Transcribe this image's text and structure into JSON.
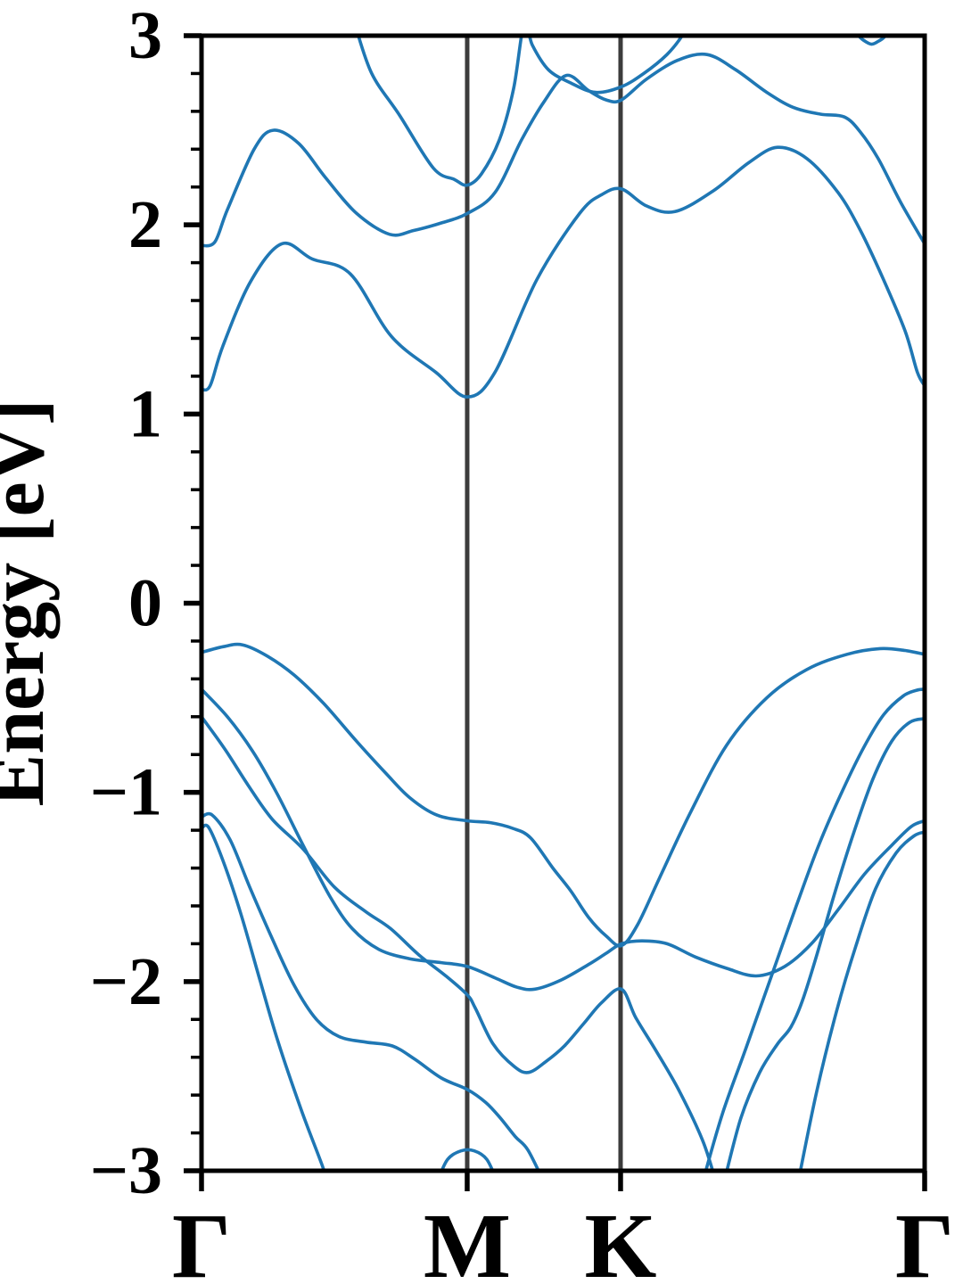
{
  "figure": {
    "kind": "band-structure-plot",
    "background": "#ffffff"
  },
  "chart_data": {
    "type": "line",
    "title": "",
    "xlabel": "",
    "ylabel": "Energy [eV]",
    "ylim": [
      -3,
      3
    ],
    "grid": "off",
    "legend": "none",
    "y_major_ticks": [
      3,
      2,
      1,
      0,
      -1,
      -2,
      -3
    ],
    "y_tick_labels": [
      "3",
      "2",
      "1",
      "0",
      "−1",
      "−2",
      "−3"
    ],
    "y_minor_step": 0.2,
    "x_axis": {
      "kpoint_labels": [
        "Γ",
        "M",
        "K",
        "Γ"
      ],
      "kpoint_fracs": [
        0,
        0.3674,
        0.5795,
        1
      ],
      "vertical_lines_at": [
        0.3674,
        0.5795
      ]
    },
    "style": {
      "band_color": "#1f77b4",
      "band_width": 3.6,
      "frame_color": "#000000",
      "frame_width": 5,
      "kline_color": "#3c3c3c",
      "kline_width": 5,
      "tick_color": "#000000",
      "y_tick_font_px": 76,
      "x_label_font_px": 104,
      "ylabel_font_px": 88
    },
    "series": [
      {
        "name": "conduction-band-1",
        "points": [
          [
            0,
            1.13
          ],
          [
            0.012,
            1.15
          ],
          [
            0.0296,
            1.36
          ],
          [
            0.0678,
            1.7
          ],
          [
            0.111,
            1.9
          ],
          [
            0.1529,
            1.82
          ],
          [
            0.2059,
            1.74
          ],
          [
            0.2626,
            1.41
          ],
          [
            0.3243,
            1.22
          ],
          [
            0.3674,
            1.09
          ],
          [
            0.4057,
            1.22
          ],
          [
            0.4636,
            1.71
          ],
          [
            0.5228,
            2.06
          ],
          [
            0.5536,
            2.16
          ],
          [
            0.5807,
            2.19
          ],
          [
            0.6153,
            2.1
          ],
          [
            0.6547,
            2.07
          ],
          [
            0.7078,
            2.18
          ],
          [
            0.7571,
            2.33
          ],
          [
            0.7966,
            2.41
          ],
          [
            0.8372,
            2.35
          ],
          [
            0.8804,
            2.17
          ],
          [
            0.9112,
            1.97
          ],
          [
            0.942,
            1.72
          ],
          [
            0.9729,
            1.44
          ],
          [
            0.99,
            1.22
          ],
          [
            1,
            1.15
          ]
        ]
      },
      {
        "name": "conduction-band-2",
        "points": [
          [
            0,
            1.89
          ],
          [
            0.0185,
            1.91
          ],
          [
            0.0358,
            2.08
          ],
          [
            0.0728,
            2.4
          ],
          [
            0.099,
            2.5
          ],
          [
            0.1344,
            2.43
          ],
          [
            0.1714,
            2.25
          ],
          [
            0.2145,
            2.06
          ],
          [
            0.2602,
            1.95
          ],
          [
            0.2934,
            1.97
          ],
          [
            0.3317,
            2.01
          ],
          [
            0.3674,
            2.06
          ],
          [
            0.4057,
            2.17
          ],
          [
            0.4427,
            2.45
          ],
          [
            0.4735,
            2.65
          ],
          [
            0.5043,
            2.79
          ],
          [
            0.5351,
            2.71
          ],
          [
            0.5598,
            2.66
          ],
          [
            0.5807,
            2.66
          ],
          [
            0.6153,
            2.77
          ],
          [
            0.6584,
            2.87
          ],
          [
            0.6991,
            2.9
          ],
          [
            0.7386,
            2.82
          ],
          [
            0.7818,
            2.7
          ],
          [
            0.8188,
            2.62
          ],
          [
            0.8557,
            2.585
          ],
          [
            0.889,
            2.57
          ],
          [
            0.9112,
            2.49
          ],
          [
            0.9358,
            2.35
          ],
          [
            0.9667,
            2.12
          ],
          [
            1,
            1.9
          ]
        ]
      },
      {
        "name": "conduction-band-3",
        "points": [
          [
            0.2121,
            3.06
          ],
          [
            0.2354,
            2.8
          ],
          [
            0.2737,
            2.58
          ],
          [
            0.3206,
            2.3
          ],
          [
            0.3496,
            2.24
          ],
          [
            0.3674,
            2.21
          ],
          [
            0.3872,
            2.27
          ],
          [
            0.4119,
            2.45
          ],
          [
            0.4316,
            2.72
          ],
          [
            0.4463,
            3.07
          ],
          [
            0.4575,
            2.95
          ],
          [
            0.4797,
            2.82
          ],
          [
            0.5105,
            2.75
          ],
          [
            0.545,
            2.7
          ],
          [
            0.5807,
            2.73
          ],
          [
            0.6116,
            2.8
          ],
          [
            0.6436,
            2.9
          ],
          [
            0.6646,
            3.0
          ],
          [
            0.6757,
            3.09
          ]
        ]
      },
      {
        "name": "conduction-band-4-top-dip",
        "points": [
          [
            0.8952,
            3.09
          ],
          [
            0.9087,
            3.0
          ],
          [
            0.9198,
            2.965
          ],
          [
            0.9272,
            2.955
          ],
          [
            0.9358,
            2.97
          ],
          [
            0.9457,
            3.0
          ],
          [
            0.9568,
            3.09
          ]
        ]
      },
      {
        "name": "valence-band-1",
        "points": [
          [
            0,
            -0.26
          ],
          [
            0.0296,
            -0.23
          ],
          [
            0.0567,
            -0.22
          ],
          [
            0.0912,
            -0.28
          ],
          [
            0.1282,
            -0.38
          ],
          [
            0.1689,
            -0.53
          ],
          [
            0.2145,
            -0.73
          ],
          [
            0.2552,
            -0.9
          ],
          [
            0.2885,
            -1.03
          ],
          [
            0.3255,
            -1.12
          ],
          [
            0.3674,
            -1.15
          ],
          [
            0.3995,
            -1.16
          ],
          [
            0.4303,
            -1.19
          ],
          [
            0.455,
            -1.24
          ],
          [
            0.4858,
            -1.4
          ],
          [
            0.5105,
            -1.52
          ],
          [
            0.5351,
            -1.66
          ],
          [
            0.5598,
            -1.76
          ],
          [
            0.5807,
            -1.81
          ],
          [
            0.6029,
            -1.7
          ],
          [
            0.6337,
            -1.45
          ],
          [
            0.6769,
            -1.1
          ],
          [
            0.7263,
            -0.75
          ],
          [
            0.7818,
            -0.5
          ],
          [
            0.8372,
            -0.35
          ],
          [
            0.8927,
            -0.27
          ],
          [
            0.9383,
            -0.24
          ],
          [
            0.9729,
            -0.25
          ],
          [
            1,
            -0.27
          ]
        ]
      },
      {
        "name": "valence-band-2",
        "points": [
          [
            0,
            -0.455
          ],
          [
            0.0358,
            -0.6
          ],
          [
            0.0703,
            -0.78
          ],
          [
            0.1036,
            -1.0
          ],
          [
            0.1406,
            -1.28
          ],
          [
            0.1776,
            -1.55
          ],
          [
            0.2084,
            -1.72
          ],
          [
            0.2454,
            -1.83
          ],
          [
            0.2885,
            -1.88
          ],
          [
            0.3317,
            -1.9
          ],
          [
            0.3674,
            -1.92
          ],
          [
            0.4057,
            -1.98
          ],
          [
            0.4365,
            -2.03
          ],
          [
            0.4612,
            -2.04
          ],
          [
            0.4982,
            -1.99
          ],
          [
            0.5351,
            -1.91
          ],
          [
            0.5598,
            -1.85
          ],
          [
            0.5807,
            -1.8
          ],
          [
            0.6091,
            -1.785
          ],
          [
            0.6436,
            -1.8
          ],
          [
            0.6831,
            -1.87
          ],
          [
            0.7263,
            -1.93
          ],
          [
            0.767,
            -1.97
          ],
          [
            0.8064,
            -1.92
          ],
          [
            0.8434,
            -1.8
          ],
          [
            0.8804,
            -1.62
          ],
          [
            0.9173,
            -1.43
          ],
          [
            0.9544,
            -1.28
          ],
          [
            0.9815,
            -1.18
          ],
          [
            1,
            -1.15
          ]
        ]
      },
      {
        "name": "valence-band-3",
        "points": [
          [
            0,
            -0.6
          ],
          [
            0.0321,
            -0.77
          ],
          [
            0.0641,
            -0.96
          ],
          [
            0.0974,
            -1.14
          ],
          [
            0.1406,
            -1.3
          ],
          [
            0.1837,
            -1.5
          ],
          [
            0.2269,
            -1.63
          ],
          [
            0.2614,
            -1.72
          ],
          [
            0.3009,
            -1.86
          ],
          [
            0.3379,
            -1.97
          ],
          [
            0.3674,
            -2.07
          ],
          [
            0.3786,
            -2.14
          ],
          [
            0.4032,
            -2.33
          ],
          [
            0.4328,
            -2.45
          ],
          [
            0.4525,
            -2.48
          ],
          [
            0.4772,
            -2.42
          ],
          [
            0.5018,
            -2.34
          ],
          [
            0.529,
            -2.22
          ],
          [
            0.5536,
            -2.11
          ],
          [
            0.5807,
            -2.04
          ],
          [
            0.6004,
            -2.19
          ],
          [
            0.6276,
            -2.36
          ],
          [
            0.6609,
            -2.58
          ],
          [
            0.693,
            -2.84
          ],
          [
            0.7115,
            -3.06
          ]
        ]
      },
      {
        "name": "valence-band-4",
        "points": [
          [
            0,
            -1.13
          ],
          [
            0.0148,
            -1.12
          ],
          [
            0.0395,
            -1.25
          ],
          [
            0.0666,
            -1.5
          ],
          [
            0.0974,
            -1.77
          ],
          [
            0.1282,
            -2.02
          ],
          [
            0.159,
            -2.2
          ],
          [
            0.1899,
            -2.29
          ],
          [
            0.2269,
            -2.32
          ],
          [
            0.2639,
            -2.34
          ],
          [
            0.2947,
            -2.41
          ],
          [
            0.3317,
            -2.51
          ],
          [
            0.3674,
            -2.57
          ],
          [
            0.3933,
            -2.64
          ],
          [
            0.413,
            -2.72
          ],
          [
            0.434,
            -2.82
          ],
          [
            0.4513,
            -2.89
          ],
          [
            0.4735,
            -3.06
          ]
        ]
      },
      {
        "name": "valence-band-5",
        "points": [
          [
            0,
            -1.19
          ],
          [
            0.0099,
            -1.185
          ],
          [
            0.0296,
            -1.36
          ],
          [
            0.0543,
            -1.64
          ],
          [
            0.0814,
            -2.0
          ],
          [
            0.106,
            -2.32
          ],
          [
            0.1381,
            -2.68
          ],
          [
            0.1677,
            -2.98
          ],
          [
            0.1776,
            -3.1
          ]
        ]
      },
      {
        "name": "valence-band-6-M-pocket",
        "points": [
          [
            0.3267,
            -3.05
          ],
          [
            0.3403,
            -2.94
          ],
          [
            0.3588,
            -2.895
          ],
          [
            0.3772,
            -2.895
          ],
          [
            0.3946,
            -2.94
          ],
          [
            0.4081,
            -3.05
          ]
        ]
      },
      {
        "name": "valence-band-7-riser",
        "points": [
          [
            0.693,
            -3.06
          ],
          [
            0.7202,
            -2.7
          ],
          [
            0.7522,
            -2.36
          ],
          [
            0.7855,
            -2.0
          ],
          [
            0.8225,
            -1.6
          ],
          [
            0.8545,
            -1.27
          ],
          [
            0.8865,
            -0.99
          ],
          [
            0.9161,
            -0.76
          ],
          [
            0.9432,
            -0.59
          ],
          [
            0.9704,
            -0.49
          ],
          [
            0.9889,
            -0.46
          ],
          [
            1,
            -0.455
          ]
        ]
      },
      {
        "name": "valence-band-8-riser",
        "points": [
          [
            0.7226,
            -3.06
          ],
          [
            0.746,
            -2.72
          ],
          [
            0.7719,
            -2.48
          ],
          [
            0.7966,
            -2.33
          ],
          [
            0.8151,
            -2.24
          ],
          [
            0.8311,
            -2.1
          ],
          [
            0.8508,
            -1.86
          ],
          [
            0.8742,
            -1.55
          ],
          [
            0.9013,
            -1.22
          ],
          [
            0.9284,
            -0.93
          ],
          [
            0.9544,
            -0.73
          ],
          [
            0.979,
            -0.63
          ],
          [
            1,
            -0.61
          ]
        ]
      },
      {
        "name": "valence-band-9-riser",
        "points": [
          [
            0.825,
            -3.06
          ],
          [
            0.8508,
            -2.58
          ],
          [
            0.8779,
            -2.16
          ],
          [
            0.905,
            -1.81
          ],
          [
            0.9321,
            -1.51
          ],
          [
            0.9606,
            -1.32
          ],
          [
            0.9852,
            -1.23
          ],
          [
            1,
            -1.21
          ]
        ]
      }
    ]
  }
}
